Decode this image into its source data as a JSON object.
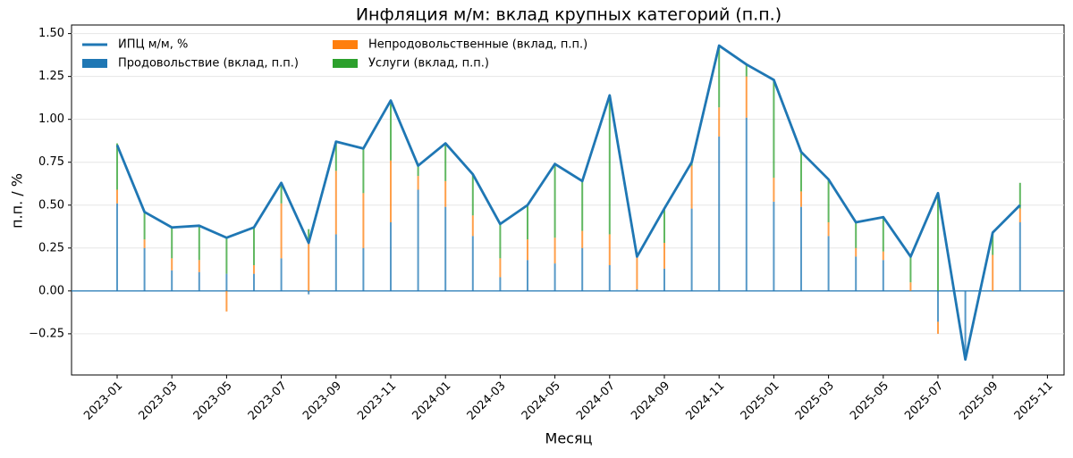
{
  "chart_data": {
    "type": "stacked-bar-line",
    "title": "Инфляция м/м: вклад крупных категорий (п.п.)",
    "x_label": "Месяц",
    "y_label": "п.п. / %",
    "x": [
      "2023-01",
      "2023-02",
      "2023-03",
      "2023-04",
      "2023-05",
      "2023-06",
      "2023-07",
      "2023-08",
      "2023-09",
      "2023-10",
      "2023-11",
      "2023-12",
      "2024-01",
      "2024-02",
      "2024-03",
      "2024-04",
      "2024-05",
      "2024-06",
      "2024-07",
      "2024-08",
      "2024-09",
      "2024-10",
      "2024-11",
      "2024-12",
      "2025-01",
      "2025-02",
      "2025-03",
      "2025-04",
      "2025-05",
      "2025-06",
      "2025-07",
      "2025-08",
      "2025-09",
      "2025-10"
    ],
    "series": [
      {
        "name": "Продовольствие (вклад, п.п.)",
        "color": "#1f77b4",
        "kind": "bar",
        "values": [
          0.51,
          0.25,
          0.12,
          0.11,
          0.1,
          0.1,
          0.19,
          -0.02,
          0.33,
          0.25,
          0.4,
          0.59,
          0.49,
          0.32,
          0.08,
          0.18,
          0.16,
          0.25,
          0.15,
          0.01,
          0.13,
          0.48,
          0.9,
          1.01,
          0.52,
          0.49,
          0.32,
          0.2,
          0.18,
          0.0,
          -0.18,
          -0.4,
          0.0,
          0.4
        ]
      },
      {
        "name": "Непродовольственные (вклад, п.п.)",
        "color": "#ff7f0e",
        "kind": "bar",
        "values": [
          0.08,
          0.05,
          0.07,
          0.07,
          -0.12,
          0.05,
          0.32,
          0.28,
          0.37,
          0.32,
          0.36,
          0.08,
          0.15,
          0.12,
          0.11,
          0.12,
          0.15,
          0.1,
          0.18,
          0.19,
          0.15,
          0.25,
          0.17,
          0.24,
          0.14,
          0.09,
          0.08,
          0.05,
          0.05,
          0.05,
          -0.07,
          0.0,
          0.21,
          0.08
        ]
      },
      {
        "name": "Услуги (вклад, п.п.)",
        "color": "#2ca02c",
        "kind": "bar",
        "values": [
          0.27,
          0.16,
          0.18,
          0.2,
          0.21,
          0.22,
          0.12,
          0.08,
          0.17,
          0.26,
          0.35,
          0.07,
          0.22,
          0.24,
          0.2,
          0.2,
          0.43,
          0.29,
          0.81,
          0.0,
          0.2,
          0.02,
          0.36,
          0.07,
          0.57,
          0.23,
          0.25,
          0.15,
          0.2,
          0.15,
          0.57,
          0.0,
          0.13,
          0.15
        ]
      },
      {
        "name": "ИПЦ м/м, %",
        "color": "#1f77b4",
        "kind": "line",
        "values": [
          0.85,
          0.46,
          0.37,
          0.38,
          0.31,
          0.37,
          0.63,
          0.28,
          0.87,
          0.83,
          1.11,
          0.73,
          0.86,
          0.68,
          0.39,
          0.5,
          0.74,
          0.64,
          1.14,
          0.2,
          0.48,
          0.75,
          1.43,
          1.32,
          1.23,
          0.81,
          0.65,
          0.4,
          0.43,
          0.2,
          0.57,
          -0.4,
          0.34,
          0.5
        ]
      }
    ],
    "xticks": [
      "2023-01",
      "2023-03",
      "2023-05",
      "2023-07",
      "2023-09",
      "2023-11",
      "2024-01",
      "2024-03",
      "2024-05",
      "2024-07",
      "2024-09",
      "2024-11",
      "2025-01",
      "2025-03",
      "2025-05",
      "2025-07",
      "2025-09",
      "2025-11"
    ],
    "ylim": [
      -0.49,
      1.55
    ],
    "yticks": [
      {
        "value": -0.25,
        "label": "−0.25"
      },
      {
        "value": 0,
        "label": "0.00"
      },
      {
        "value": 0.25,
        "label": "0.25"
      },
      {
        "value": 0.5,
        "label": "0.50"
      },
      {
        "value": 0.75,
        "label": "0.75"
      },
      {
        "value": 1,
        "label": "1.00"
      },
      {
        "value": 1.25,
        "label": "1.25"
      },
      {
        "value": 1.5,
        "label": "1.50"
      }
    ],
    "grid": true,
    "legend": "upper left"
  }
}
